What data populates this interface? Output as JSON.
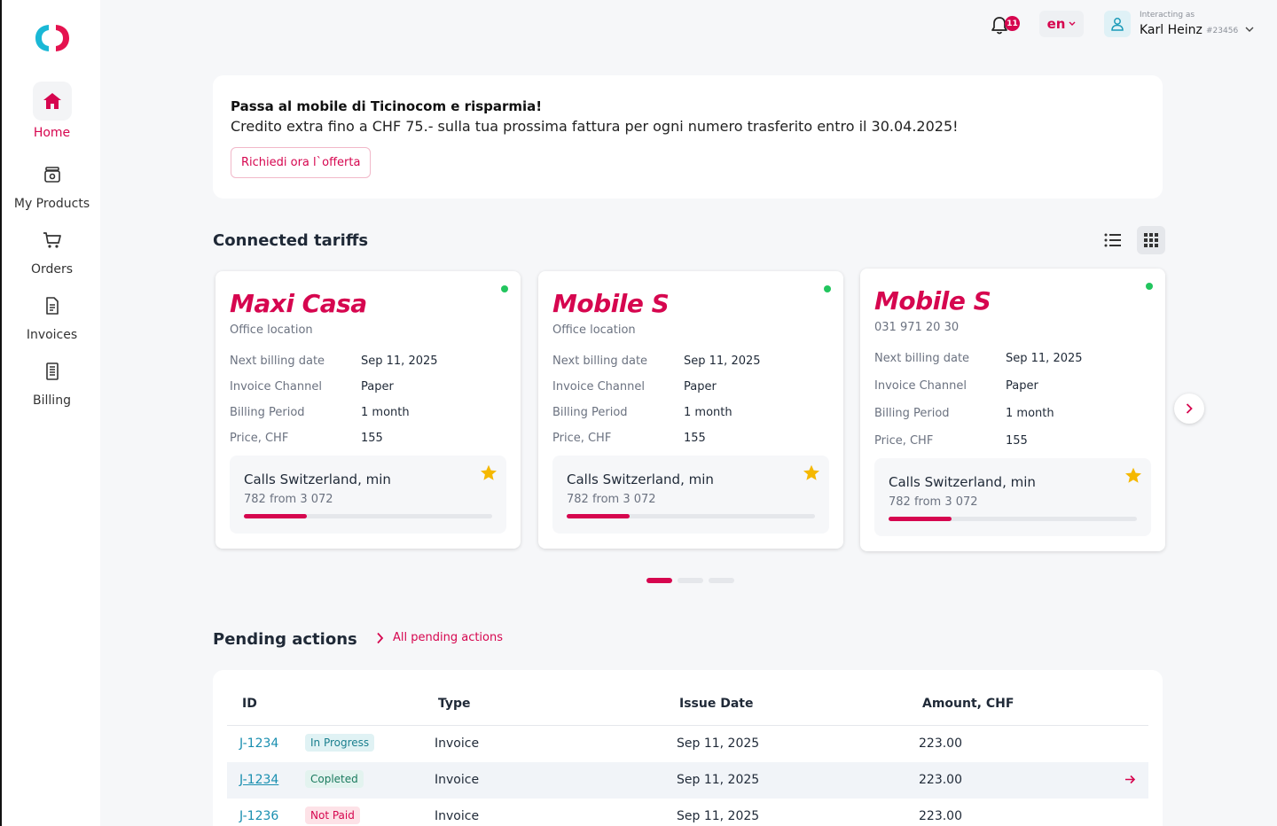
{
  "sidebar": {
    "items": [
      {
        "label": "Home",
        "icon": "home-icon",
        "active": true
      },
      {
        "label": "My Products",
        "icon": "products-icon",
        "active": false
      },
      {
        "label": "Orders",
        "icon": "cart-icon",
        "active": false
      },
      {
        "label": "Invoices",
        "icon": "invoice-icon",
        "active": false
      },
      {
        "label": "Billing",
        "icon": "billing-icon",
        "active": false
      }
    ]
  },
  "topbar": {
    "notification_count": "11",
    "language": "en",
    "interacting_label": "Interacting as",
    "user_name": "Karl Heinz",
    "user_id": "#23456"
  },
  "promo": {
    "title": "Passa al mobile di Ticinocom e risparmia!",
    "text": "Credito extra fino a CHF 75.- sulla tua prossima fattura per ogni numero trasferito entro il 30.04.2025!",
    "button_label": "Richiedi ora l`offerta"
  },
  "tariffs": {
    "title": "Connected tariffs",
    "cards": [
      {
        "name": "Maxi Casa",
        "sub": "Office location",
        "status": "active",
        "rows": [
          {
            "k": "Next billing date",
            "v": "Sep 11, 2025"
          },
          {
            "k": "Invoice Channel",
            "v": "Paper"
          },
          {
            "k": "Billing Period",
            "v": "1 month"
          },
          {
            "k": "Price, CHF",
            "v": "155"
          }
        ],
        "usage_title": "Calls Switzerland, min",
        "usage_value": "782 from 3 072",
        "usage_used": 782,
        "usage_total": 3072
      },
      {
        "name": "Mobile S",
        "sub": "Office location",
        "status": "active",
        "rows": [
          {
            "k": "Next billing date",
            "v": "Sep 11, 2025"
          },
          {
            "k": "Invoice Channel",
            "v": "Paper"
          },
          {
            "k": "Billing Period",
            "v": "1 month"
          },
          {
            "k": "Price, CHF",
            "v": "155"
          }
        ],
        "usage_title": "Calls Switzerland, min",
        "usage_value": "782 from 3 072",
        "usage_used": 782,
        "usage_total": 3072
      },
      {
        "name": "Mobile S",
        "sub": "031 971 20 30",
        "status": "active",
        "rows": [
          {
            "k": "Next billing date",
            "v": "Sep 11, 2025"
          },
          {
            "k": "Invoice Channel",
            "v": "Paper"
          },
          {
            "k": "Billing Period",
            "v": "1 month"
          },
          {
            "k": "Price, CHF",
            "v": "155"
          }
        ],
        "usage_title": "Calls Switzerland, min",
        "usage_value": "782 from 3 072",
        "usage_used": 782,
        "usage_total": 3072
      }
    ],
    "pager_pages": 3,
    "pager_active": 1
  },
  "pending": {
    "title": "Pending actions",
    "link_label": "All pending actions",
    "columns": [
      "ID",
      "Type",
      "Issue Date",
      "Amount, CHF"
    ],
    "rows": [
      {
        "id": "J-1234",
        "status": "In Progress",
        "type": "Invoice",
        "date": "Sep 11, 2025",
        "amount": "223.00"
      },
      {
        "id": "J-1234",
        "status": "Copleted",
        "type": "Invoice",
        "date": "Sep 11, 2025",
        "amount": "223.00"
      },
      {
        "id": "J-1236",
        "status": "Not Paid",
        "type": "Invoice",
        "date": "Sep 11, 2025",
        "amount": "223.00"
      }
    ]
  },
  "colors": {
    "accent": "#d6064f",
    "link": "#1a8fb0",
    "active_dot": "#22c55e",
    "star": "#f5b800"
  }
}
